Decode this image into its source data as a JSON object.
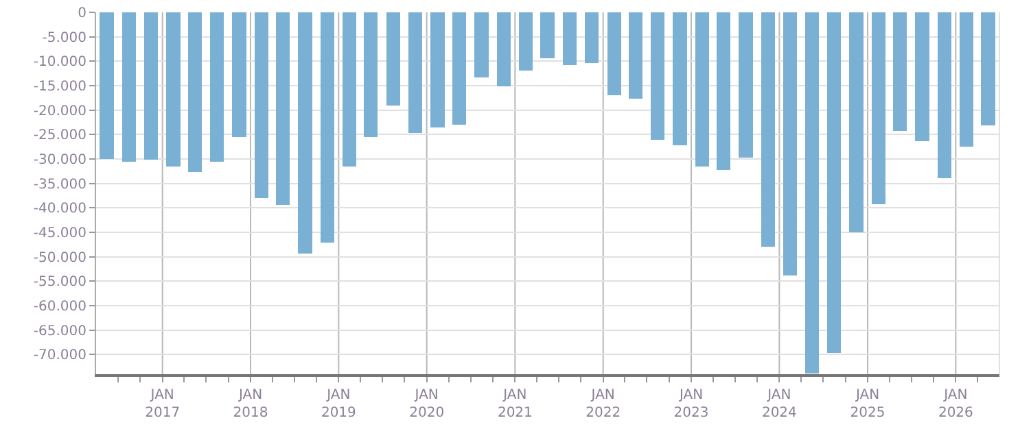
{
  "chart_data": {
    "type": "bar",
    "color": "#7ab0d3",
    "x": [
      "2016-05-15",
      "2016-08-15",
      "2016-11-15",
      "2017-02-15",
      "2017-05-15",
      "2017-08-15",
      "2017-11-15",
      "2018-02-15",
      "2018-05-15",
      "2018-08-15",
      "2018-11-15",
      "2019-02-15",
      "2019-05-15",
      "2019-08-15",
      "2019-11-15",
      "2020-02-15",
      "2020-05-15",
      "2020-08-15",
      "2020-11-15",
      "2021-02-15",
      "2021-05-15",
      "2021-08-15",
      "2021-11-15",
      "2022-02-15",
      "2022-05-15",
      "2022-08-15",
      "2022-11-15",
      "2023-02-15",
      "2023-05-15",
      "2023-08-15",
      "2023-11-15",
      "2024-02-15",
      "2024-05-15",
      "2024-08-15",
      "2024-11-15",
      "2025-02-15",
      "2025-05-15",
      "2025-08-15",
      "2025-11-15",
      "2026-02-15",
      "2026-05-15"
    ],
    "values": [
      -30000,
      -30500,
      -30200,
      -31600,
      -32700,
      -30500,
      -25500,
      -38000,
      -39400,
      -49400,
      -47100,
      -31600,
      -25500,
      -19100,
      -24700,
      -23600,
      -23000,
      -13300,
      -15200,
      -11900,
      -9400,
      -10800,
      -10300,
      -16900,
      -17700,
      -26100,
      -27200,
      -31600,
      -32200,
      -29700,
      -47900,
      -53800,
      -73900,
      -69600,
      -45000,
      -39200,
      -24200,
      -26400,
      -33900,
      -27500,
      -23100
    ],
    "xlim": [
      "2016-04-01",
      "2026-07-01"
    ],
    "xticks": [
      {
        "value": "2016-07-01",
        "label": null
      },
      {
        "value": "2016-10-01",
        "label": null
      },
      {
        "value": "2017-01-01",
        "label": "JAN\n2017"
      },
      {
        "value": "2017-04-01",
        "label": null
      },
      {
        "value": "2017-07-01",
        "label": null
      },
      {
        "value": "2017-10-01",
        "label": null
      },
      {
        "value": "2018-01-01",
        "label": "JAN\n2018"
      },
      {
        "value": "2018-04-01",
        "label": null
      },
      {
        "value": "2018-07-01",
        "label": null
      },
      {
        "value": "2018-10-01",
        "label": null
      },
      {
        "value": "2019-01-01",
        "label": "JAN\n2019"
      },
      {
        "value": "2019-04-01",
        "label": null
      },
      {
        "value": "2019-07-01",
        "label": null
      },
      {
        "value": "2019-10-01",
        "label": null
      },
      {
        "value": "2020-01-01",
        "label": "JAN\n2020"
      },
      {
        "value": "2020-04-01",
        "label": null
      },
      {
        "value": "2020-07-01",
        "label": null
      },
      {
        "value": "2020-10-01",
        "label": null
      },
      {
        "value": "2021-01-01",
        "label": "JAN\n2021"
      },
      {
        "value": "2021-04-01",
        "label": null
      },
      {
        "value": "2021-07-01",
        "label": null
      },
      {
        "value": "2021-10-01",
        "label": null
      },
      {
        "value": "2022-01-01",
        "label": "JAN\n2022"
      },
      {
        "value": "2022-04-01",
        "label": null
      },
      {
        "value": "2022-07-01",
        "label": null
      },
      {
        "value": "2022-10-01",
        "label": null
      },
      {
        "value": "2023-01-01",
        "label": "JAN\n2023"
      },
      {
        "value": "2023-04-01",
        "label": null
      },
      {
        "value": "2023-07-01",
        "label": null
      },
      {
        "value": "2023-10-01",
        "label": null
      },
      {
        "value": "2024-01-01",
        "label": "JAN\n2024"
      },
      {
        "value": "2024-04-01",
        "label": null
      },
      {
        "value": "2024-07-01",
        "label": null
      },
      {
        "value": "2024-10-01",
        "label": null
      },
      {
        "value": "2025-01-01",
        "label": "JAN\n2025"
      },
      {
        "value": "2025-04-01",
        "label": null
      },
      {
        "value": "2025-07-01",
        "label": null
      },
      {
        "value": "2025-10-01",
        "label": null
      },
      {
        "value": "2026-01-01",
        "label": "JAN\n2026"
      },
      {
        "value": "2026-04-01",
        "label": null
      }
    ],
    "ylim": [
      -74000,
      0
    ],
    "yticks": [
      0,
      {
        "value": -5000,
        "label": "-5.000"
      },
      {
        "value": -10000,
        "label": "-10.000"
      },
      {
        "value": -15000,
        "label": "-15.000"
      },
      {
        "value": -20000,
        "label": "-20.000"
      },
      {
        "value": -25000,
        "label": "-25.000"
      },
      {
        "value": -30000,
        "label": "-30.000"
      },
      {
        "value": -35000,
        "label": "-35.000"
      },
      {
        "value": -40000,
        "label": "-40.000"
      },
      {
        "value": -45000,
        "label": "-45.000"
      },
      {
        "value": -50000,
        "label": "-50.000"
      },
      {
        "value": -55000,
        "label": "-55.000"
      },
      {
        "value": -60000,
        "label": "-60.000"
      },
      {
        "value": -65000,
        "label": "-65.000"
      },
      {
        "value": -70000,
        "label": "-70.000"
      }
    ],
    "grid": true
  }
}
